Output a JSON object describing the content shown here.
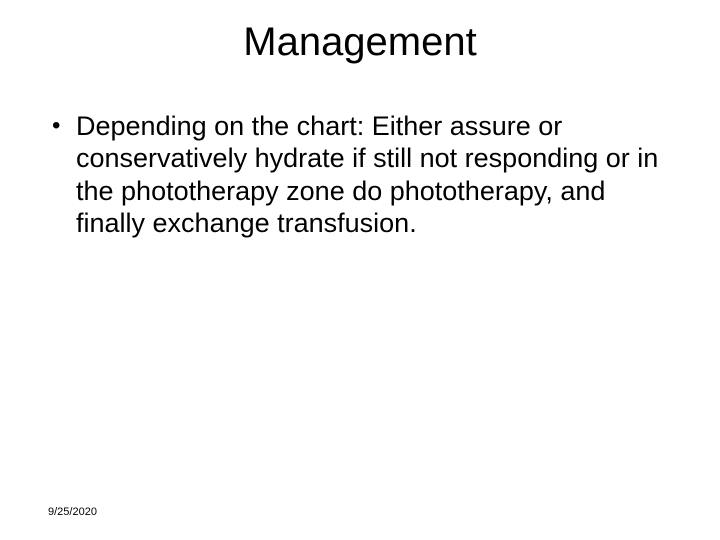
{
  "slide": {
    "title": "Management",
    "bullets": [
      "Depending on the chart: Either assure or conservatively hydrate if still not responding or in the phototherapy zone do phototherapy, and finally exchange transfusion."
    ],
    "footer_date": "9/25/2020"
  },
  "style": {
    "background_color": "#ffffff",
    "text_color": "#000000",
    "title_fontsize": 40,
    "body_fontsize": 27,
    "footer_fontsize": 11,
    "font_family": "Arial"
  }
}
